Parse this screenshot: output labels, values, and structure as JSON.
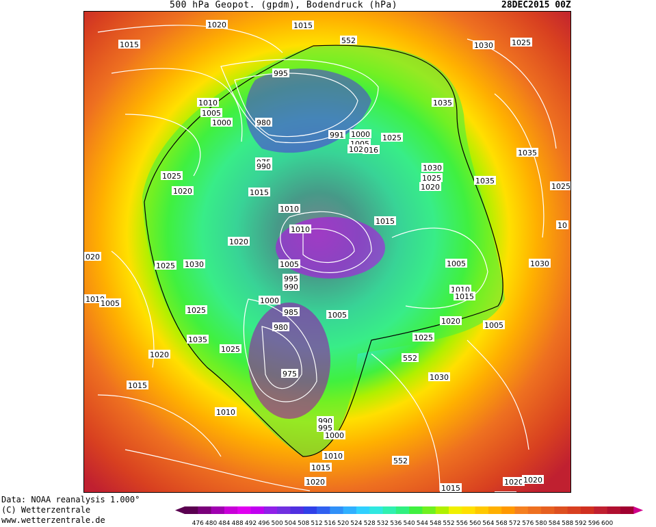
{
  "header": {
    "title": "500 hPa Geopot. (gpdm), Bodendruck (hPa)",
    "date": "28DEC2015 00Z"
  },
  "credits": {
    "line1": "Data: NOAA reanalysis 1.000°",
    "line2": "(C) Wetterzentrale",
    "line3": "www.wetterzentrale.de"
  },
  "colors": {
    "legend": [
      "#5a0050",
      "#7a007a",
      "#a000b0",
      "#c800d8",
      "#e000f0",
      "#c000f0",
      "#9020e8",
      "#7030e0",
      "#5030e0",
      "#3040e8",
      "#3060f0",
      "#3090f8",
      "#30b0ff",
      "#30d0ff",
      "#30e8e0",
      "#30f0b0",
      "#30f080",
      "#40f040",
      "#70f020",
      "#b0f000",
      "#f0f000",
      "#ffe000",
      "#ffc800",
      "#ffb000",
      "#ff9800",
      "#f58020",
      "#ee7020",
      "#e66020",
      "#dd5020",
      "#d84020",
      "#d03020",
      "#c02030",
      "#b01030",
      "#a00030"
    ],
    "arrow": "#d0008c"
  },
  "legend_ticks": [
    "476",
    "480",
    "484",
    "488",
    "492",
    "496",
    "500",
    "504",
    "508",
    "512",
    "516",
    "520",
    "524",
    "528",
    "532",
    "536",
    "540",
    "544",
    "548",
    "552",
    "556",
    "560",
    "564",
    "568",
    "572",
    "576",
    "580",
    "584",
    "588",
    "592",
    "596",
    "600"
  ],
  "contour_552_label": "552",
  "pressure_labels": [
    "1020",
    "1015",
    "1015",
    "552",
    "1030",
    "1025",
    "995",
    "1010",
    "1005",
    "1000",
    "980",
    "1035",
    "991",
    "1000",
    "1005",
    "1020",
    "1025",
    "016",
    "975",
    "990",
    "1025",
    "1030",
    "1025",
    "1020",
    "1020",
    "1015",
    "1035",
    "1035",
    "1025",
    "1010",
    "1015",
    "1010",
    "1020",
    "1030",
    "020",
    "1025",
    "1005",
    "1030",
    "1010",
    "1005",
    "995",
    "990",
    "1005",
    "1000",
    "1005",
    "1010",
    "1015",
    "1020",
    "985",
    "1005",
    "1025",
    "980",
    "1035",
    "1025",
    "1025",
    "1020",
    "1015",
    "552",
    "975",
    "1030",
    "1020",
    "1010",
    "990",
    "995",
    "1000",
    "552",
    "1010",
    "1015",
    "1020",
    "1025",
    "1020",
    "1015",
    "10"
  ]
}
